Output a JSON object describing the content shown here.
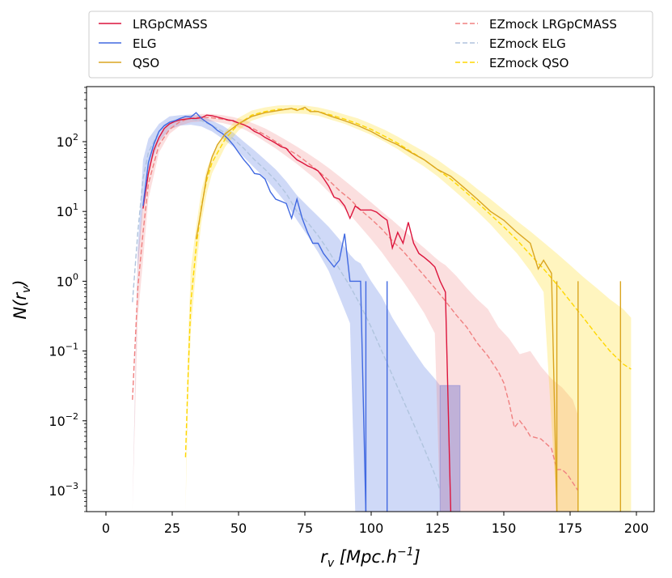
{
  "chart_data": {
    "type": "line",
    "xlabel": "r_v [Mpc.h^-1]",
    "xlabel_parts": {
      "main": "r",
      "sub": "v",
      "bracket_open": " [",
      "unit": "Mpc.h",
      "sup": "−1",
      "bracket_close": "]"
    },
    "ylabel_parts": {
      "main": "N(r",
      "sub": "v",
      "close": ")"
    },
    "xlim": [
      -7,
      207
    ],
    "ylim_log10": [
      -3.28,
      0.0
    ],
    "ylim_log10_top": 2.81,
    "y_scale": "log",
    "x_ticks": [
      0,
      25,
      50,
      75,
      100,
      125,
      150,
      175,
      200
    ],
    "x_tick_labels": [
      "0",
      "25",
      "50",
      "75",
      "100",
      "125",
      "150",
      "175",
      "200"
    ],
    "y_ticks_exp": [
      2,
      1,
      0,
      -1,
      -2,
      -3
    ],
    "y_tick_labels": [
      {
        "base": "10",
        "exp": "2"
      },
      {
        "base": "10",
        "exp": "1"
      },
      {
        "base": "10",
        "exp": "0"
      },
      {
        "base": "10",
        "exp": "−1"
      },
      {
        "base": "10",
        "exp": "−2"
      },
      {
        "base": "10",
        "exp": "−3"
      }
    ],
    "legend_position": "top",
    "series": [
      {
        "name": "LRGpCMASS",
        "color": "#dc143c",
        "style": "solid",
        "x": [
          14,
          16,
          18,
          20,
          22,
          24,
          26,
          28,
          30,
          32,
          34,
          36,
          38,
          40,
          42,
          44,
          46,
          48,
          50,
          52,
          54,
          56,
          58,
          60,
          62,
          64,
          66,
          68,
          70,
          72,
          74,
          76,
          78,
          80,
          82,
          84,
          86,
          88,
          90,
          92,
          94,
          96,
          98,
          100,
          102,
          104,
          106,
          108,
          110,
          112,
          114,
          116,
          118,
          120,
          122,
          124,
          126,
          128,
          130
        ],
        "y": [
          11,
          35,
          75,
          115,
          155,
          180,
          195,
          205,
          210,
          215,
          215,
          220,
          240,
          235,
          225,
          215,
          205,
          200,
          185,
          175,
          160,
          140,
          130,
          115,
          105,
          95,
          85,
          80,
          65,
          55,
          50,
          45,
          42,
          38,
          30,
          23,
          16,
          15,
          12,
          8,
          12,
          10.5,
          10.5,
          10.5,
          9.8,
          8.5,
          7.5,
          3.0,
          5.0,
          3.5,
          7.0,
          3.5,
          2.5,
          2.2,
          1.9,
          1.6,
          1.0,
          0.7,
          0.0005
        ]
      },
      {
        "name": "ELG",
        "color": "#4169e1",
        "style": "solid",
        "x": [
          14,
          16,
          18,
          20,
          22,
          24,
          26,
          28,
          30,
          32,
          34,
          36,
          38,
          40,
          42,
          44,
          46,
          48,
          50,
          52,
          54,
          56,
          58,
          60,
          62,
          64,
          66,
          68,
          70,
          72,
          74,
          76,
          78,
          80,
          82,
          84,
          86,
          88,
          90,
          92,
          94,
          96,
          98
        ],
        "y": [
          12,
          50,
          90,
          140,
          170,
          190,
          200,
          215,
          230,
          225,
          260,
          215,
          190,
          170,
          145,
          130,
          110,
          90,
          70,
          55,
          45,
          35,
          34,
          29,
          19,
          15,
          14,
          13,
          8,
          15,
          8,
          5,
          3.5,
          3.5,
          2.5,
          2.0,
          1.6,
          2.0,
          4.8,
          1.0,
          1.0,
          1.0,
          0.0005
        ]
      },
      {
        "name": "QSO",
        "color": "#daa520",
        "style": "solid",
        "x": [
          34,
          36,
          38,
          40,
          42,
          45,
          50,
          55,
          60,
          65,
          70,
          72,
          75,
          77,
          80,
          85,
          90,
          95,
          100,
          105,
          110,
          115,
          120,
          125,
          130,
          135,
          140,
          145,
          150,
          155,
          160,
          163,
          165,
          168,
          170
        ],
        "y": [
          4,
          11,
          32,
          60,
          90,
          130,
          180,
          230,
          260,
          280,
          300,
          280,
          310,
          270,
          270,
          230,
          200,
          170,
          140,
          110,
          90,
          70,
          55,
          40,
          32,
          22,
          15,
          10,
          7.5,
          5.0,
          3.5,
          1.5,
          2.0,
          1.3,
          0.0005
        ]
      },
      {
        "name": "EZmock LRGpCMASS",
        "color": "#f08080",
        "style": "dashed",
        "x": [
          10,
          12,
          14,
          16,
          20,
          24,
          28,
          32,
          36,
          40,
          44,
          48,
          52,
          56,
          60,
          64,
          68,
          72,
          76,
          80,
          84,
          88,
          92,
          96,
          100,
          104,
          108,
          112,
          116,
          120,
          124,
          128,
          132,
          136,
          140,
          144,
          148,
          150,
          152,
          154,
          156,
          158,
          160,
          164,
          168,
          170,
          172,
          174,
          176,
          178
        ],
        "y": [
          0.02,
          0.8,
          5,
          25,
          90,
          150,
          195,
          215,
          225,
          220,
          210,
          195,
          175,
          150,
          125,
          100,
          80,
          65,
          50,
          38,
          28,
          20,
          15,
          10.5,
          7.8,
          5.6,
          3.8,
          2.7,
          1.8,
          1.2,
          0.8,
          0.52,
          0.33,
          0.22,
          0.13,
          0.085,
          0.05,
          0.035,
          0.018,
          0.008,
          0.01,
          0.008,
          0.006,
          0.0055,
          0.004,
          0.002,
          0.002,
          0.0017,
          0.0013,
          0.001
        ]
      },
      {
        "name": "EZmock ELG",
        "color": "#b0c4de",
        "style": "dashed",
        "x": [
          10,
          12,
          14,
          16,
          20,
          24,
          28,
          32,
          36,
          40,
          44,
          48,
          52,
          56,
          60,
          64,
          68,
          72,
          76,
          80,
          84,
          88,
          92,
          96,
          100,
          104,
          108,
          112,
          116,
          120,
          124,
          126
        ],
        "y": [
          0.5,
          5,
          30,
          70,
          140,
          190,
          205,
          210,
          200,
          170,
          140,
          110,
          80,
          55,
          40,
          28,
          18,
          10,
          7,
          4.5,
          2.7,
          1.5,
          0.85,
          0.45,
          0.22,
          0.1,
          0.045,
          0.02,
          0.009,
          0.004,
          0.0017,
          0.001
        ]
      },
      {
        "name": "EZmock QSO",
        "color": "#ffd700",
        "style": "dashed",
        "x": [
          30,
          31,
          32,
          34,
          36,
          38,
          40,
          45,
          50,
          55,
          60,
          65,
          70,
          75,
          80,
          85,
          90,
          95,
          100,
          105,
          110,
          115,
          120,
          125,
          130,
          135,
          140,
          145,
          150,
          155,
          160,
          165,
          170,
          175,
          180,
          185,
          190,
          195,
          198
        ],
        "y": [
          0.003,
          0.05,
          0.5,
          3,
          12,
          28,
          50,
          110,
          180,
          240,
          270,
          290,
          295,
          290,
          270,
          240,
          210,
          180,
          150,
          120,
          95,
          72,
          55,
          40,
          29,
          20,
          13.5,
          9,
          6,
          3.9,
          2.4,
          1.5,
          0.9,
          0.52,
          0.3,
          0.17,
          0.1,
          0.065,
          0.055
        ]
      }
    ],
    "bands": [
      {
        "name": "ELG",
        "color": "#4169e1",
        "opacity": 0.25,
        "x": [
          10,
          12,
          14,
          16,
          20,
          24,
          28,
          32,
          36,
          40,
          44,
          48,
          52,
          56,
          60,
          64,
          68,
          72,
          76,
          80,
          84,
          88,
          92,
          94,
          96,
          100,
          104,
          108,
          112,
          116,
          120,
          124,
          126,
          128,
          130,
          132,
          133.5
        ],
        "lo": [
          0.0005,
          1.5,
          12,
          40,
          100,
          150,
          170,
          175,
          165,
          140,
          110,
          85,
          60,
          42,
          30,
          20,
          13,
          7.5,
          4.5,
          2.6,
          1.4,
          0.6,
          0.25,
          0.0005,
          0.0005,
          0.0005,
          0.0005,
          0.0005,
          0.0005,
          0.0005,
          0.0005,
          0.0005,
          0.0005,
          0.0005,
          0.0005,
          0.0005,
          0.0005
        ],
        "hi": [
          0.0005,
          3,
          55,
          110,
          180,
          230,
          240,
          245,
          235,
          200,
          170,
          135,
          100,
          75,
          55,
          40,
          27,
          17,
          12,
          8.5,
          6,
          4,
          2.4,
          2.0,
          1.8,
          1.0,
          0.6,
          0.3,
          0.17,
          0.1,
          0.06,
          0.04,
          0.032,
          0.032,
          0.032,
          0.032,
          0.032
        ]
      },
      {
        "name": "LRGpCMASS",
        "color": "#f08080",
        "opacity": 0.25,
        "x": [
          10,
          12,
          14,
          16,
          20,
          24,
          28,
          32,
          36,
          40,
          44,
          48,
          52,
          56,
          60,
          64,
          68,
          72,
          76,
          80,
          84,
          88,
          92,
          96,
          100,
          104,
          108,
          112,
          116,
          120,
          124,
          126,
          128,
          132,
          136,
          140,
          144,
          148,
          152,
          156,
          160,
          164,
          168,
          172,
          176,
          178
        ],
        "lo": [
          0.0005,
          0.3,
          2,
          15,
          70,
          130,
          170,
          190,
          195,
          195,
          185,
          170,
          150,
          125,
          100,
          80,
          62,
          48,
          36,
          27,
          19,
          13,
          9,
          6,
          4,
          2.6,
          1.6,
          1.0,
          0.6,
          0.35,
          0.18,
          0.0005,
          0.0005,
          0.0005,
          0.0005,
          0.0005,
          0.0005,
          0.0005,
          0.0005,
          0.0005,
          0.0005,
          0.0005,
          0.0005,
          0.0005,
          0.0005,
          0.0005
        ],
        "hi": [
          0.0005,
          2.5,
          15,
          45,
          120,
          180,
          220,
          240,
          250,
          250,
          240,
          225,
          205,
          180,
          155,
          128,
          105,
          85,
          68,
          54,
          42,
          32,
          24,
          18,
          13.5,
          10,
          7.5,
          5.5,
          4,
          3,
          2.2,
          1.9,
          1.7,
          1.2,
          0.8,
          0.55,
          0.4,
          0.22,
          0.15,
          0.09,
          0.1,
          0.06,
          0.04,
          0.03,
          0.02,
          0.012
        ]
      },
      {
        "name": "QSO",
        "color": "#ffd700",
        "opacity": 0.25,
        "x": [
          30,
          31,
          32,
          34,
          36,
          38,
          40,
          45,
          50,
          55,
          60,
          65,
          70,
          75,
          80,
          85,
          90,
          95,
          100,
          105,
          110,
          115,
          120,
          125,
          130,
          135,
          140,
          145,
          150,
          155,
          160,
          165,
          170,
          175,
          180,
          185,
          190,
          195,
          198
        ],
        "lo": [
          0.0005,
          0.02,
          0.2,
          1.5,
          7,
          18,
          35,
          85,
          145,
          200,
          230,
          250,
          255,
          250,
          235,
          205,
          180,
          150,
          125,
          100,
          78,
          58,
          44,
          32,
          22,
          15,
          10,
          6.5,
          4,
          2.5,
          1.4,
          0.7,
          0.0005,
          0.0005,
          0.0005,
          0.0005,
          0.0005,
          0.0005,
          0.0005
        ],
        "hi": [
          0.0005,
          0.15,
          1.5,
          6,
          20,
          40,
          65,
          140,
          220,
          280,
          310,
          330,
          335,
          330,
          310,
          280,
          245,
          215,
          180,
          148,
          118,
          92,
          72,
          55,
          40,
          30,
          21,
          15,
          10.5,
          7.3,
          5.2,
          3.6,
          2.5,
          1.7,
          1.15,
          0.8,
          0.55,
          0.4,
          0.3
        ]
      }
    ],
    "spikes": [
      {
        "x": 94,
        "y": 0.0005,
        "color": "#4169e1",
        "opacity": 0.25
      },
      {
        "x": 98,
        "y": 1.0,
        "color": "#4169e1"
      },
      {
        "x": 106,
        "y": 1.0,
        "color": "#4169e1"
      },
      {
        "x": 170,
        "y": 1.0,
        "color": "#daa520"
      },
      {
        "x": 178,
        "y": 1.0,
        "color": "#daa520"
      },
      {
        "x": 194,
        "y": 1.0,
        "color": "#daa520"
      }
    ],
    "rect_markers": [
      {
        "x0": 126,
        "x1": 133.5,
        "y0": 0.0005,
        "y1": 0.032,
        "color": "#8a8ad6"
      }
    ]
  },
  "legend": {
    "left": [
      {
        "label": "LRGpCMASS",
        "color": "#dc143c",
        "dashed": false
      },
      {
        "label": "ELG",
        "color": "#4169e1",
        "dashed": false
      },
      {
        "label": "QSO",
        "color": "#daa520",
        "dashed": false
      }
    ],
    "right": [
      {
        "label": "EZmock LRGpCMASS",
        "color": "#f08080",
        "dashed": true
      },
      {
        "label": "EZmock ELG",
        "color": "#b0c4de",
        "dashed": true
      },
      {
        "label": "EZmock QSO",
        "color": "#ffd700",
        "dashed": true
      }
    ]
  }
}
